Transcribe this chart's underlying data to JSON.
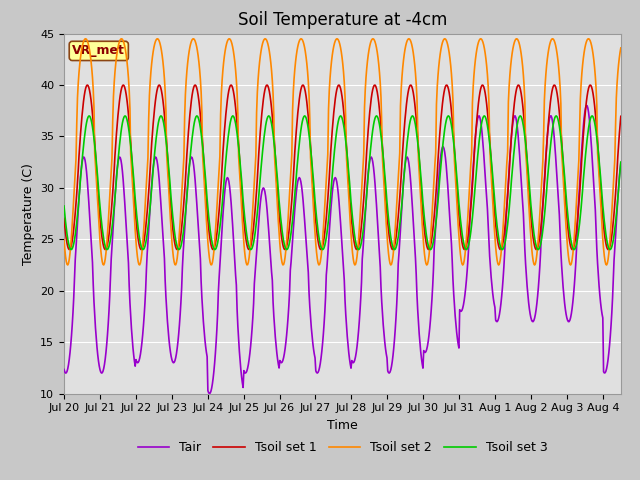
{
  "title": "Soil Temperature at -4cm",
  "xlabel": "Time",
  "ylabel": "Temperature (C)",
  "ylim": [
    10,
    45
  ],
  "x_tick_labels": [
    "Jul 20",
    "Jul 21",
    "Jul 22",
    "Jul 23",
    "Jul 24",
    "Jul 25",
    "Jul 26",
    "Jul 27",
    "Jul 28",
    "Jul 29",
    "Jul 30",
    "Jul 31",
    "Aug 1",
    "Aug 2",
    "Aug 3",
    "Aug 4"
  ],
  "legend_labels": [
    "Tair",
    "Tsoil set 1",
    "Tsoil set 2",
    "Tsoil set 3"
  ],
  "colors": {
    "Tair": "#9900CC",
    "Tsoil_set1": "#CC0000",
    "Tsoil_set2": "#FF8800",
    "Tsoil_set3": "#00CC00"
  },
  "annotation_text": "VR_met",
  "annotation_bg": "#FFFF99",
  "annotation_fg": "#8B0000",
  "annotation_border": "#8B4513",
  "background_color": "#C8C8C8",
  "plot_bg": "#E0E0E0",
  "grid_color": "#FFFFFF",
  "title_fontsize": 12,
  "label_fontsize": 9,
  "tick_fontsize": 8,
  "legend_fontsize": 9,
  "line_width": 1.2
}
